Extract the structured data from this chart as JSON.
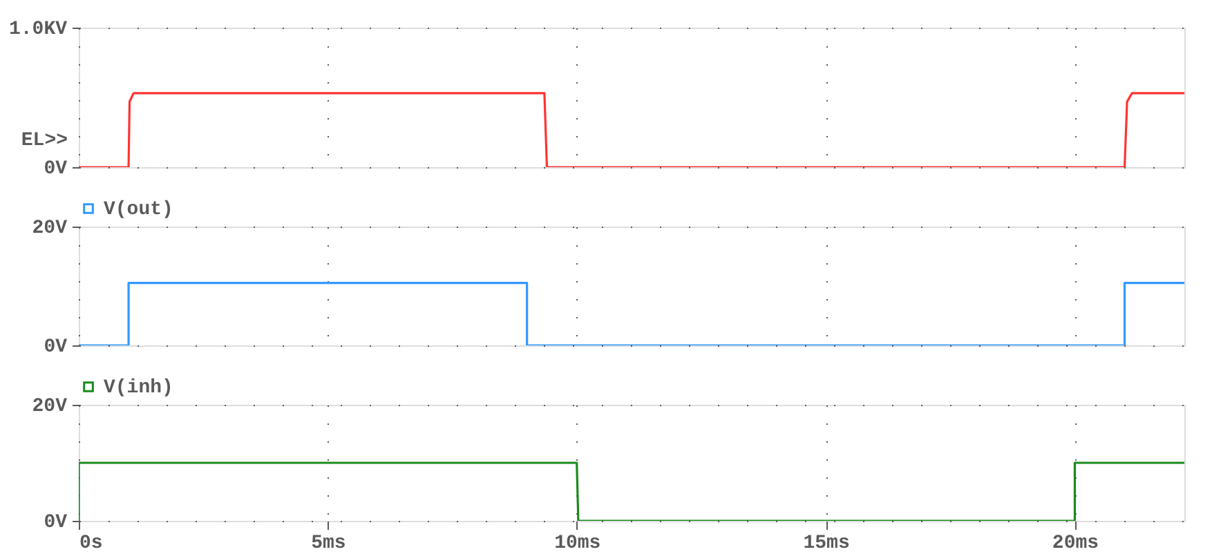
{
  "chart_data": [
    {
      "type": "line",
      "annotations": [
        "EL>>"
      ],
      "xlim": [
        0,
        22.2
      ],
      "ylim": [
        0,
        1
      ],
      "xticks": [
        0,
        5,
        10,
        15,
        20
      ],
      "yticks": [
        {
          "value": 0,
          "label": "0V"
        },
        {
          "value": 1,
          "label": "1.0KV"
        }
      ],
      "grid": true,
      "tick_labels": "y",
      "line_style": "solid",
      "series": [
        {
          "color": "#ff3333",
          "x": [
            0,
            1.0,
            1.02,
            1.1,
            9.35,
            9.4,
            21.0,
            21.05,
            21.15,
            22.2
          ],
          "values": [
            0,
            0,
            0.47,
            0.53,
            0.53,
            0,
            0,
            0.47,
            0.53,
            0.53
          ]
        }
      ]
    },
    {
      "type": "line",
      "xlim": [
        0,
        22.2
      ],
      "ylim": [
        0,
        20
      ],
      "legend": "top left",
      "xticks": [
        0,
        5,
        10,
        15,
        20
      ],
      "yticks": [
        {
          "value": 0,
          "label": "0V"
        },
        {
          "value": 20,
          "label": "20V"
        }
      ],
      "grid": true,
      "tick_labels": "y",
      "line_style": "solid",
      "series": [
        {
          "name": "V(out)",
          "color": "#3399ff",
          "x": [
            0,
            1.0,
            1.0,
            9.0,
            9.0,
            21.0,
            21.0,
            22.2
          ],
          "values": [
            0,
            0,
            10.5,
            10.5,
            0,
            0,
            10.5,
            10.5
          ]
        }
      ]
    },
    {
      "type": "line",
      "xlim": [
        0,
        22.2
      ],
      "ylim": [
        0,
        20
      ],
      "legend": "top left",
      "xticks": [
        {
          "value": 0,
          "label": "0s"
        },
        {
          "value": 5,
          "label": "5ms"
        },
        {
          "value": 10,
          "label": "10ms"
        },
        {
          "value": 15,
          "label": "15ms"
        },
        {
          "value": 20,
          "label": "20ms"
        }
      ],
      "yticks": [
        {
          "value": 0,
          "label": "0V"
        },
        {
          "value": 20,
          "label": "20V"
        }
      ],
      "grid": true,
      "line_style": "solid",
      "series": [
        {
          "name": "V(inh)",
          "color": "#1a8c1a",
          "x": [
            0,
            0,
            10.0,
            10.03,
            20.0,
            20.0,
            22.2
          ],
          "values": [
            0,
            10,
            10,
            0,
            0,
            10,
            10
          ]
        }
      ]
    }
  ]
}
